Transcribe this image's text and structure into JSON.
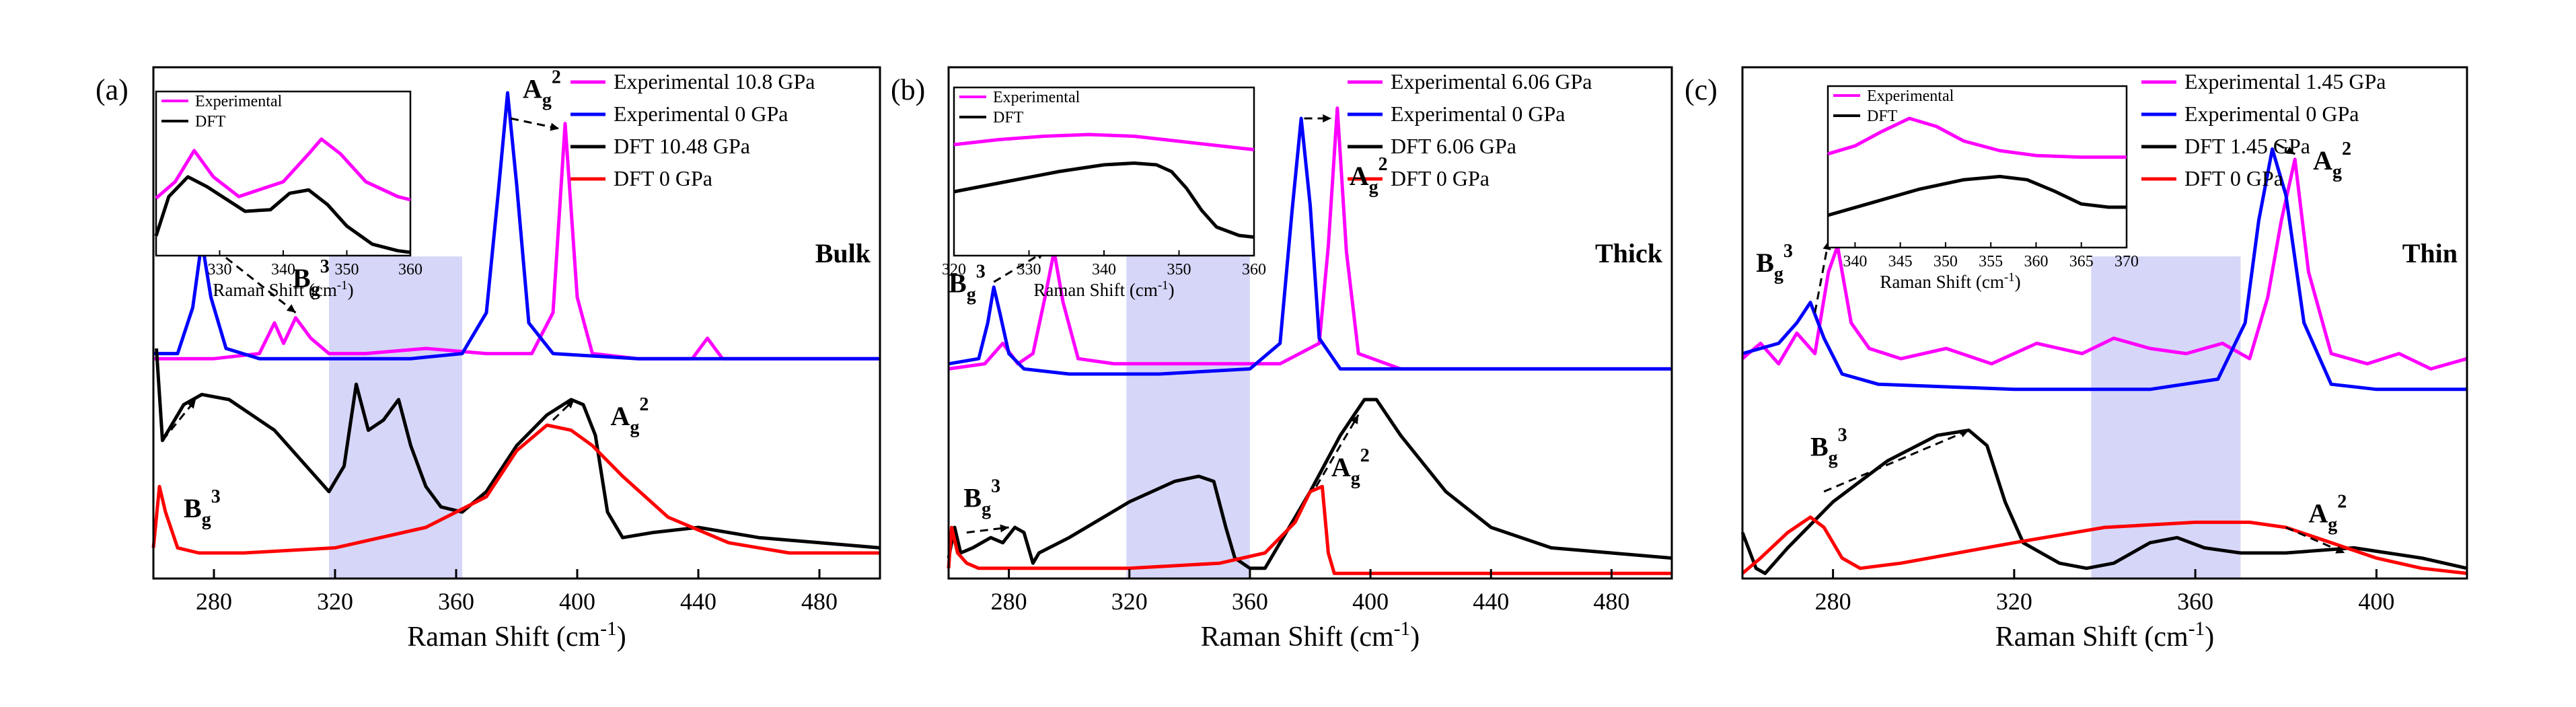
{
  "chart_data": [
    {
      "type": "line",
      "panel_label": "(a)",
      "sample_label": "Bulk",
      "xlabel": "Raman Shift (cm-1)",
      "xlim": [
        260,
        500
      ],
      "xticks": [
        "280",
        "320",
        "360",
        "400",
        "440",
        "480"
      ],
      "highlight_region": [
        318,
        362
      ],
      "legend": [
        "Experimental 10.8 GPa",
        "Experimental 0 GPa",
        "DFT 10.48 GPa",
        "DFT 0 GPa"
      ],
      "series": [
        {
          "name": "Experimental 10.8 GPa",
          "color": "#ff00ff",
          "x": [
            260,
            280,
            295,
            300,
            303,
            307,
            312,
            318,
            330,
            350,
            370,
            385,
            392,
            396,
            400,
            405,
            420,
            438,
            443,
            448,
            470,
            500
          ],
          "y": [
            0.43,
            0.43,
            0.44,
            0.5,
            0.46,
            0.51,
            0.47,
            0.44,
            0.44,
            0.45,
            0.44,
            0.44,
            0.52,
            0.89,
            0.55,
            0.44,
            0.43,
            0.43,
            0.47,
            0.43,
            0.43,
            0.43
          ]
        },
        {
          "name": "Experimental 0 GPa",
          "color": "#0000ff",
          "x": [
            260,
            268,
            273,
            276,
            279,
            284,
            295,
            320,
            345,
            362,
            370,
            374,
            377,
            380,
            384,
            392,
            420,
            460,
            500
          ],
          "y": [
            0.44,
            0.44,
            0.53,
            0.66,
            0.55,
            0.45,
            0.43,
            0.43,
            0.43,
            0.44,
            0.52,
            0.76,
            0.95,
            0.77,
            0.5,
            0.44,
            0.43,
            0.43,
            0.43
          ]
        },
        {
          "name": "DFT 10.48 GPa",
          "color": "#000000",
          "x": [
            261,
            263,
            266,
            270,
            276,
            285,
            300,
            318,
            323,
            327,
            331,
            336,
            341,
            345,
            350,
            355,
            362,
            370,
            380,
            390,
            398,
            402,
            406,
            410,
            415,
            425,
            440,
            460,
            480,
            500
          ],
          "y": [
            0.45,
            0.27,
            0.3,
            0.34,
            0.36,
            0.35,
            0.29,
            0.17,
            0.22,
            0.38,
            0.29,
            0.31,
            0.35,
            0.26,
            0.18,
            0.14,
            0.13,
            0.17,
            0.26,
            0.32,
            0.35,
            0.34,
            0.28,
            0.13,
            0.08,
            0.09,
            0.1,
            0.08,
            0.07,
            0.06
          ]
        },
        {
          "name": "DFT 0 GPa",
          "color": "#ff0000",
          "x": [
            260,
            262,
            264,
            268,
            275,
            290,
            320,
            350,
            370,
            380,
            390,
            398,
            405,
            415,
            430,
            450,
            470,
            500
          ],
          "y": [
            0.06,
            0.18,
            0.13,
            0.06,
            0.05,
            0.05,
            0.06,
            0.1,
            0.16,
            0.25,
            0.3,
            0.29,
            0.26,
            0.2,
            0.12,
            0.07,
            0.05,
            0.05
          ]
        }
      ],
      "annotations": [
        {
          "text": "B",
          "sub": "g",
          "sup": "3",
          "x": 306,
          "y": 0.57
        },
        {
          "text": "A",
          "sub": "g",
          "sup": "2",
          "x": 382,
          "y": 0.94
        },
        {
          "text": "B",
          "sub": "g",
          "sup": "3",
          "x": 270,
          "y": 0.12
        },
        {
          "text": "A",
          "sub": "g",
          "sup": "2",
          "x": 411,
          "y": 0.3
        }
      ],
      "inset": {
        "xlabel": "Raman Shift (cm-1)",
        "xlim": [
          320,
          360
        ],
        "xticks": [
          "330",
          "340",
          "350",
          "360"
        ],
        "legend": [
          "Experimental",
          "DFT"
        ],
        "series": [
          {
            "name": "Experimental",
            "color": "#ff00ff",
            "x": [
              320,
              323,
              326,
              329,
              333,
              340,
              344,
              346,
              349,
              353,
              358,
              360
            ],
            "y": [
              0.35,
              0.45,
              0.64,
              0.48,
              0.36,
              0.45,
              0.62,
              0.71,
              0.62,
              0.45,
              0.36,
              0.34
            ]
          },
          {
            "name": "DFT",
            "color": "#000000",
            "x": [
              320,
              322,
              325,
              328,
              334,
              338,
              341,
              344,
              347,
              350,
              354,
              358,
              360
            ],
            "y": [
              0.12,
              0.36,
              0.48,
              0.42,
              0.27,
              0.28,
              0.38,
              0.4,
              0.31,
              0.18,
              0.07,
              0.03,
              0.02
            ]
          }
        ]
      }
    },
    {
      "type": "line",
      "panel_label": "(b)",
      "sample_label": "Thick",
      "xlabel": "Raman Shift (cm-1)",
      "xlim": [
        260,
        500
      ],
      "xticks": [
        "280",
        "320",
        "360",
        "400",
        "440",
        "480"
      ],
      "highlight_region": [
        319,
        360
      ],
      "legend": [
        "Experimental 6.06 GPa",
        "Experimental 0 GPa",
        "DFT 6.06 GPa",
        "DFT 0 GPa"
      ],
      "series": [
        {
          "name": "Experimental 6.06 GPa",
          "color": "#ff00ff",
          "x": [
            260,
            272,
            278,
            283,
            288,
            292,
            295,
            298,
            303,
            315,
            340,
            370,
            383,
            386,
            389,
            392,
            396,
            410,
            450,
            500
          ],
          "y": [
            0.41,
            0.42,
            0.46,
            0.42,
            0.44,
            0.55,
            0.64,
            0.54,
            0.43,
            0.42,
            0.42,
            0.42,
            0.46,
            0.65,
            0.92,
            0.64,
            0.44,
            0.41,
            0.41,
            0.41
          ]
        },
        {
          "name": "Experimental 0 GPa",
          "color": "#0000ff",
          "x": [
            260,
            270,
            273,
            275,
            277,
            280,
            285,
            300,
            330,
            360,
            370,
            374,
            377,
            380,
            383,
            390,
            420,
            460,
            500
          ],
          "y": [
            0.42,
            0.43,
            0.5,
            0.57,
            0.52,
            0.44,
            0.41,
            0.4,
            0.4,
            0.41,
            0.46,
            0.72,
            0.9,
            0.73,
            0.47,
            0.41,
            0.41,
            0.41,
            0.41
          ]
        },
        {
          "name": "DFT 6.06 GPa",
          "color": "#000000",
          "x": [
            260,
            262,
            264,
            268,
            274,
            278,
            282,
            285,
            288,
            290,
            300,
            320,
            335,
            343,
            348,
            352,
            355,
            360,
            365,
            372,
            380,
            390,
            398,
            402,
            410,
            425,
            440,
            460,
            480,
            500
          ],
          "y": [
            0.04,
            0.1,
            0.05,
            0.06,
            0.08,
            0.07,
            0.1,
            0.09,
            0.03,
            0.05,
            0.08,
            0.15,
            0.19,
            0.2,
            0.19,
            0.1,
            0.04,
            0.02,
            0.02,
            0.09,
            0.17,
            0.28,
            0.35,
            0.35,
            0.28,
            0.17,
            0.1,
            0.06,
            0.05,
            0.04
          ]
        },
        {
          "name": "DFT 0 GPa",
          "color": "#ff0000",
          "x": [
            260,
            261,
            263,
            266,
            270,
            290,
            320,
            350,
            365,
            375,
            380,
            384,
            386,
            388,
            395,
            420,
            460,
            500
          ],
          "y": [
            0.02,
            0.1,
            0.05,
            0.03,
            0.02,
            0.02,
            0.02,
            0.03,
            0.05,
            0.11,
            0.17,
            0.18,
            0.05,
            0.01,
            0.01,
            0.01,
            0.01,
            0.01
          ]
        }
      ],
      "annotations": [
        {
          "text": "B",
          "sub": "g",
          "sup": "3",
          "x": 260,
          "y": 0.56
        },
        {
          "text": "A",
          "sub": "g",
          "sup": "2",
          "x": 393,
          "y": 0.77
        },
        {
          "text": "B",
          "sub": "g",
          "sup": "3",
          "x": 265,
          "y": 0.14
        },
        {
          "text": "A",
          "sub": "g",
          "sup": "2",
          "x": 387,
          "y": 0.2
        }
      ],
      "inset": {
        "xlabel": "Raman Shift (cm-1)",
        "xlim": [
          320,
          360
        ],
        "xticks": [
          "320",
          "330",
          "340",
          "350",
          "360"
        ],
        "legend": [
          "Experimental",
          "DFT"
        ],
        "series": [
          {
            "name": "Experimental",
            "color": "#ff00ff",
            "x": [
              320,
              326,
              332,
              338,
              344,
              350,
              356,
              360
            ],
            "y": [
              0.66,
              0.69,
              0.71,
              0.72,
              0.71,
              0.68,
              0.65,
              0.63
            ]
          },
          {
            "name": "DFT",
            "color": "#000000",
            "x": [
              320,
              327,
              334,
              340,
              344,
              347,
              349,
              351,
              353,
              355,
              358,
              360
            ],
            "y": [
              0.38,
              0.44,
              0.5,
              0.54,
              0.55,
              0.54,
              0.5,
              0.4,
              0.27,
              0.17,
              0.12,
              0.11
            ]
          }
        ]
      }
    },
    {
      "type": "line",
      "panel_label": "(c)",
      "sample_label": "Thin",
      "xlabel": "Raman Shift (cm-1)",
      "xlim": [
        260,
        420
      ],
      "xticks": [
        "280",
        "320",
        "360",
        "400"
      ],
      "highlight_region": [
        337,
        370
      ],
      "legend": [
        "Experimental 1.45 GPa",
        "Experimental 0 GPa",
        "DFT 1.45 GPa",
        "DFT 0 GPa"
      ],
      "series": [
        {
          "name": "Experimental 1.45 GPa",
          "color": "#ff00ff",
          "x": [
            260,
            264,
            268,
            272,
            276,
            279,
            281,
            284,
            288,
            295,
            305,
            315,
            325,
            335,
            342,
            350,
            358,
            366,
            372,
            376,
            379,
            382,
            385,
            390,
            398,
            405,
            412,
            420
          ],
          "y": [
            0.43,
            0.46,
            0.42,
            0.48,
            0.44,
            0.6,
            0.65,
            0.5,
            0.45,
            0.43,
            0.45,
            0.42,
            0.46,
            0.44,
            0.47,
            0.45,
            0.44,
            0.46,
            0.43,
            0.55,
            0.7,
            0.82,
            0.6,
            0.44,
            0.42,
            0.44,
            0.41,
            0.43
          ]
        },
        {
          "name": "Experimental 0 GPa",
          "color": "#0000ff",
          "x": [
            260,
            268,
            272,
            275,
            278,
            282,
            290,
            320,
            350,
            365,
            371,
            374,
            377,
            380,
            384,
            390,
            400,
            420
          ],
          "y": [
            0.44,
            0.46,
            0.5,
            0.54,
            0.47,
            0.4,
            0.38,
            0.37,
            0.37,
            0.39,
            0.5,
            0.7,
            0.84,
            0.75,
            0.5,
            0.38,
            0.37,
            0.37
          ]
        },
        {
          "name": "DFT 1.45 GPa",
          "color": "#000000",
          "x": [
            260,
            263,
            265,
            270,
            280,
            292,
            303,
            310,
            314,
            318,
            322,
            330,
            336,
            342,
            350,
            356,
            362,
            370,
            380,
            395,
            410,
            420
          ],
          "y": [
            0.09,
            0.02,
            0.01,
            0.06,
            0.15,
            0.23,
            0.28,
            0.29,
            0.26,
            0.15,
            0.07,
            0.03,
            0.02,
            0.03,
            0.07,
            0.08,
            0.06,
            0.05,
            0.05,
            0.06,
            0.04,
            0.02
          ]
        },
        {
          "name": "DFT 0 GPa",
          "color": "#ff0000",
          "x": [
            260,
            264,
            270,
            275,
            278,
            282,
            286,
            295,
            320,
            340,
            360,
            372,
            380,
            390,
            400,
            410,
            420
          ],
          "y": [
            0.01,
            0.04,
            0.09,
            0.12,
            0.1,
            0.04,
            0.02,
            0.03,
            0.07,
            0.1,
            0.11,
            0.11,
            0.1,
            0.07,
            0.04,
            0.02,
            0.01
          ]
        }
      ],
      "annotations": [
        {
          "text": "B",
          "sub": "g",
          "sup": "3",
          "x": 263,
          "y": 0.6
        },
        {
          "text": "A",
          "sub": "g",
          "sup": "2",
          "x": 386,
          "y": 0.8
        },
        {
          "text": "B",
          "sub": "g",
          "sup": "3",
          "x": 275,
          "y": 0.24
        },
        {
          "text": "A",
          "sub": "g",
          "sup": "2",
          "x": 385,
          "y": 0.11
        }
      ],
      "inset": {
        "xlabel": "Raman Shift (cm-1)",
        "xlim": [
          337,
          370
        ],
        "xticks": [
          "340",
          "345",
          "350",
          "355",
          "360",
          "365",
          "370"
        ],
        "legend": [
          "Experimental",
          "DFT"
        ],
        "series": [
          {
            "name": "Experimental",
            "color": "#ff00ff",
            "x": [
              337,
              340,
              343,
              346,
              349,
              352,
              356,
              360,
              365,
              370
            ],
            "y": [
              0.58,
              0.63,
              0.72,
              0.8,
              0.75,
              0.66,
              0.6,
              0.57,
              0.56,
              0.56
            ]
          },
          {
            "name": "DFT",
            "color": "#000000",
            "x": [
              337,
              342,
              347,
              352,
              356,
              359,
              362,
              365,
              368,
              370
            ],
            "y": [
              0.2,
              0.28,
              0.36,
              0.42,
              0.44,
              0.42,
              0.35,
              0.27,
              0.25,
              0.25
            ]
          }
        ]
      }
    }
  ]
}
